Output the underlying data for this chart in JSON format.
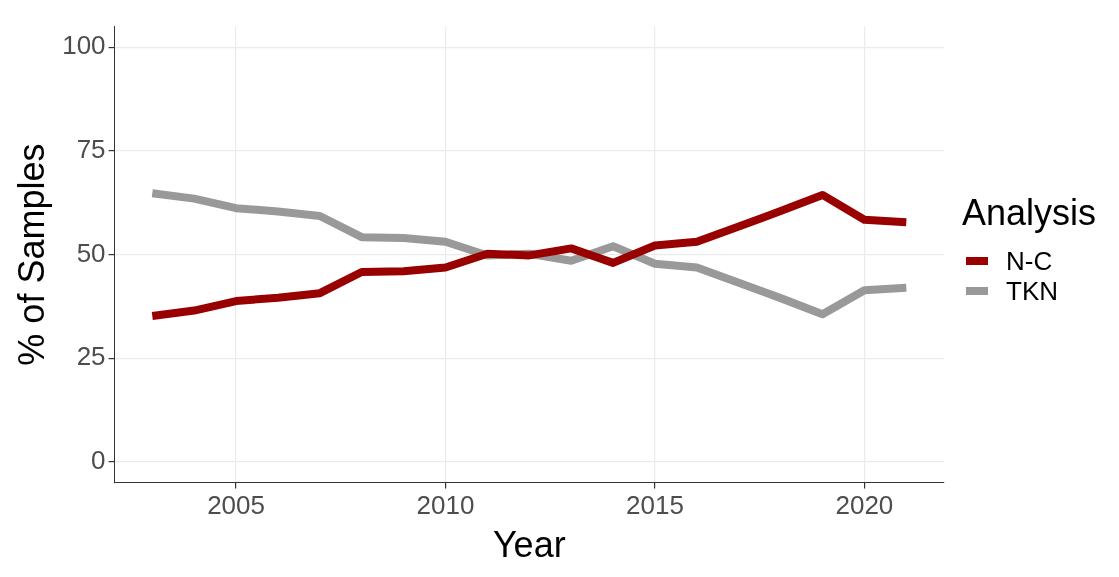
{
  "chart_data": {
    "type": "line",
    "xlabel": "Year",
    "ylabel": "% of Samples",
    "legend_title": "Analysis",
    "x": [
      2003,
      2004,
      2005,
      2006,
      2007,
      2008,
      2009,
      2010,
      2011,
      2012,
      2013,
      2014,
      2015,
      2016,
      2017,
      2018,
      2019,
      2020,
      2021
    ],
    "series": [
      {
        "name": "N-C",
        "color": "#990000",
        "values": [
          35.2,
          36.5,
          38.8,
          39.6,
          40.7,
          45.8,
          46.0,
          46.9,
          50.2,
          49.8,
          51.5,
          48.0,
          52.2,
          53.1,
          56.8,
          60.5,
          64.4,
          58.4,
          57.8
        ]
      },
      {
        "name": "TKN",
        "color": "#999999",
        "values": [
          64.8,
          63.5,
          61.2,
          60.4,
          59.3,
          54.2,
          54.0,
          53.1,
          49.8,
          50.2,
          48.5,
          52.0,
          47.8,
          46.9,
          43.2,
          39.5,
          35.6,
          41.4,
          42.0
        ]
      }
    ],
    "xlim": [
      2002.1,
      2021.9
    ],
    "xticks": [
      2005,
      2010,
      2015,
      2020
    ],
    "ylim": [
      -5,
      105
    ],
    "yticks": [
      0,
      25,
      50,
      75,
      100
    ],
    "grid": true,
    "legend": "right",
    "marker": "none",
    "line_style": "solid"
  }
}
